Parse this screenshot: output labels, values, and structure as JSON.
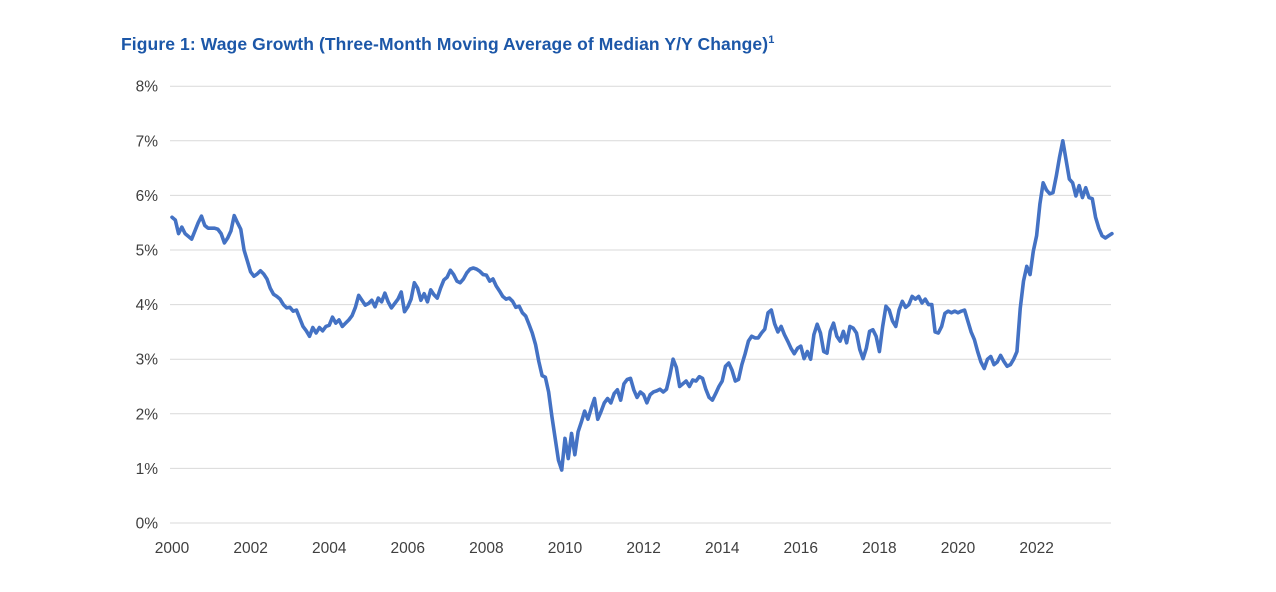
{
  "header": {
    "title": "Figure 1: Wage Growth (Three-Month Moving Average of Median Y/Y Change)",
    "title_superscript": "1",
    "title_color": "#1c57a8"
  },
  "chart_data": {
    "type": "line",
    "title": "Figure 1: Wage Growth (Three-Month Moving Average of Median Y/Y Change)",
    "footnote_marker": "1",
    "xlabel": "",
    "ylabel": "",
    "frequency": "monthly",
    "x_start": "2000-01",
    "x_end": "2023-12",
    "ylim": [
      0,
      8
    ],
    "y_tick_labels": [
      "0%",
      "1%",
      "2%",
      "3%",
      "4%",
      "5%",
      "6%",
      "7%",
      "8%"
    ],
    "x_tick_labels": [
      "2000",
      "2002",
      "2004",
      "2006",
      "2008",
      "2010",
      "2012",
      "2014",
      "2016",
      "2018",
      "2020",
      "2022"
    ],
    "grid": "horizontal",
    "legend": "none",
    "gridline_color": "#d9d9d9",
    "axis_label_color": "#3f3f3f",
    "line_color": "#4472c4",
    "line_width": 3.6,
    "series": [
      {
        "name": "Wage growth, three-month moving average of median year-over-year change (%)",
        "values_by_year": {
          "2000": [
            5.6,
            5.55,
            5.3,
            5.42,
            5.3,
            5.25,
            5.2,
            5.35,
            5.5,
            5.62,
            5.45,
            5.4
          ],
          "2001": [
            5.4,
            5.4,
            5.38,
            5.3,
            5.13,
            5.22,
            5.35,
            5.63,
            5.5,
            5.38,
            5.0,
            4.8
          ],
          "2002": [
            4.6,
            4.52,
            4.56,
            4.62,
            4.56,
            4.47,
            4.3,
            4.19,
            4.15,
            4.1,
            4.0,
            3.94
          ],
          "2003": [
            3.95,
            3.88,
            3.9,
            3.75,
            3.6,
            3.52,
            3.42,
            3.58,
            3.48,
            3.58,
            3.52,
            3.6
          ],
          "2004": [
            3.62,
            3.77,
            3.66,
            3.72,
            3.6,
            3.66,
            3.72,
            3.8,
            3.95,
            4.17,
            4.08,
            3.99
          ],
          "2005": [
            4.02,
            4.08,
            3.96,
            4.12,
            4.05,
            4.21,
            4.05,
            3.94,
            4.02,
            4.1,
            4.23,
            3.87
          ],
          "2006": [
            3.96,
            4.1,
            4.4,
            4.3,
            4.08,
            4.2,
            4.05,
            4.27,
            4.18,
            4.12,
            4.3,
            4.45
          ],
          "2007": [
            4.5,
            4.63,
            4.55,
            4.43,
            4.4,
            4.47,
            4.58,
            4.65,
            4.67,
            4.65,
            4.61,
            4.55
          ],
          "2008": [
            4.54,
            4.43,
            4.47,
            4.34,
            4.25,
            4.15,
            4.1,
            4.12,
            4.06,
            3.95,
            3.97,
            3.85
          ],
          "2009": [
            3.79,
            3.64,
            3.48,
            3.27,
            2.96,
            2.7,
            2.67,
            2.4,
            1.95,
            1.55,
            1.15,
            0.97
          ],
          "2010": [
            1.55,
            1.18,
            1.64,
            1.25,
            1.67,
            1.85,
            2.05,
            1.9,
            2.1,
            2.28,
            1.9,
            2.04
          ],
          "2011": [
            2.2,
            2.28,
            2.2,
            2.37,
            2.44,
            2.25,
            2.55,
            2.63,
            2.65,
            2.44,
            2.3,
            2.4
          ],
          "2012": [
            2.35,
            2.2,
            2.35,
            2.4,
            2.42,
            2.45,
            2.4,
            2.45,
            2.7,
            3.0,
            2.85,
            2.5
          ],
          "2013": [
            2.55,
            2.6,
            2.5,
            2.62,
            2.6,
            2.68,
            2.65,
            2.45,
            2.3,
            2.25,
            2.37,
            2.5
          ],
          "2014": [
            2.6,
            2.87,
            2.93,
            2.8,
            2.6,
            2.63,
            2.9,
            3.1,
            3.33,
            3.42,
            3.39,
            3.39
          ],
          "2015": [
            3.48,
            3.55,
            3.85,
            3.9,
            3.65,
            3.5,
            3.6,
            3.45,
            3.33,
            3.2,
            3.1,
            3.2
          ],
          "2016": [
            3.24,
            3.01,
            3.14,
            3.0,
            3.45,
            3.64,
            3.48,
            3.14,
            3.11,
            3.51,
            3.66,
            3.42
          ],
          "2017": [
            3.33,
            3.51,
            3.3,
            3.6,
            3.57,
            3.48,
            3.18,
            3.01,
            3.2,
            3.51,
            3.54,
            3.42
          ],
          "2018": [
            3.14,
            3.6,
            3.97,
            3.9,
            3.7,
            3.6,
            3.9,
            4.06,
            3.95,
            4.0,
            4.15,
            4.1
          ],
          "2019": [
            4.15,
            4.03,
            4.1,
            4.0,
            4.0,
            3.5,
            3.48,
            3.6,
            3.84,
            3.88,
            3.85,
            3.88
          ],
          "2020": [
            3.85,
            3.88,
            3.9,
            3.7,
            3.5,
            3.36,
            3.14,
            2.95,
            2.83,
            3.0,
            3.05,
            2.9
          ],
          "2021": [
            2.95,
            3.07,
            2.96,
            2.87,
            2.9,
            3.0,
            3.14,
            3.93,
            4.43,
            4.7,
            4.55,
            4.98
          ],
          "2022": [
            5.26,
            5.84,
            6.23,
            6.1,
            6.03,
            6.05,
            6.35,
            6.7,
            7.0,
            6.65,
            6.3,
            6.23
          ],
          "2023": [
            5.99,
            6.18,
            5.96,
            6.14,
            5.96,
            5.94,
            5.6,
            5.4,
            5.26,
            5.22,
            5.26,
            5.3
          ]
        }
      }
    ]
  }
}
